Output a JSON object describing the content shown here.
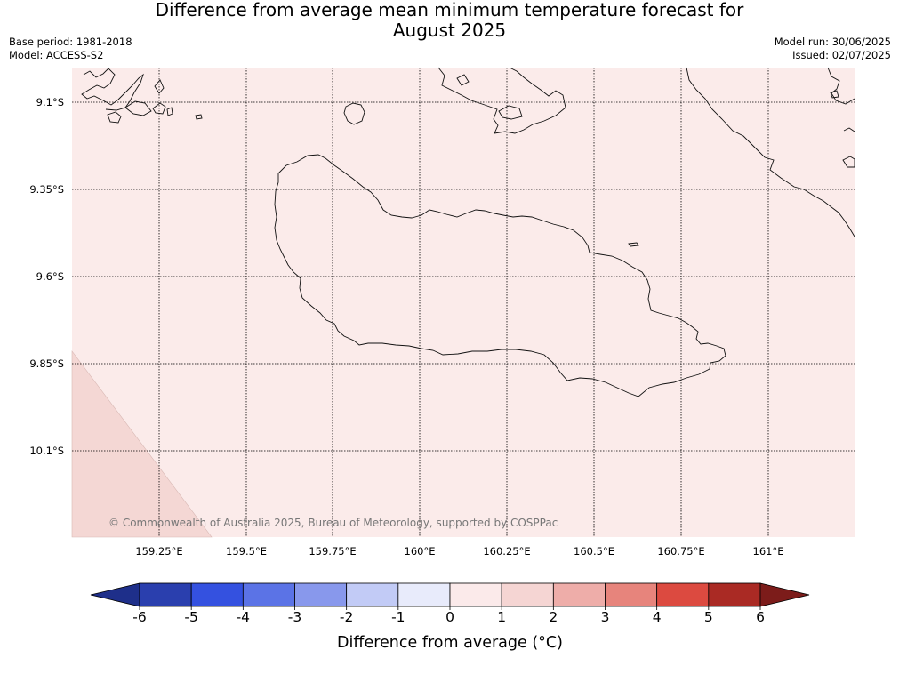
{
  "title_line1": "Difference from average mean minimum temperature forecast for",
  "title_line2": "August 2025",
  "base_period": "Base period: 1981-2018",
  "model": "Model: ACCESS-S2",
  "model_run": "Model run: 30/06/2025",
  "issued": "Issued: 02/07/2025",
  "lat_labels": [
    "9.1°S",
    "9.35°S",
    "9.6°S",
    "9.85°S",
    "10.1°S"
  ],
  "lon_labels": [
    "159.25°E",
    "159.5°E",
    "159.75°E",
    "160°E",
    "160.25°E",
    "160.5°E",
    "160.75°E",
    "161°E"
  ],
  "copyright": "© Commonwealth of Australia 2025, Bureau of Meteorology, supported by COSPPac",
  "colorbar": {
    "ticks": [
      "-6",
      "-5",
      "-4",
      "-3",
      "-2",
      "-1",
      "0",
      "1",
      "2",
      "3",
      "4",
      "5",
      "6"
    ],
    "colors": [
      "#1e2f8a",
      "#2a3fae",
      "#3451e0",
      "#5b73e6",
      "#8898ec",
      "#c2cbf6",
      "#e8ebfb",
      "#fbeaea",
      "#f5d5d3",
      "#eeada9",
      "#e7847c",
      "#dc4a40",
      "#aa2a24",
      "#7c1c1a"
    ],
    "label": "Difference from average (°C)"
  },
  "map": {
    "background_color": "#fbebea",
    "warm_corner_color": "#f4d7d4"
  }
}
